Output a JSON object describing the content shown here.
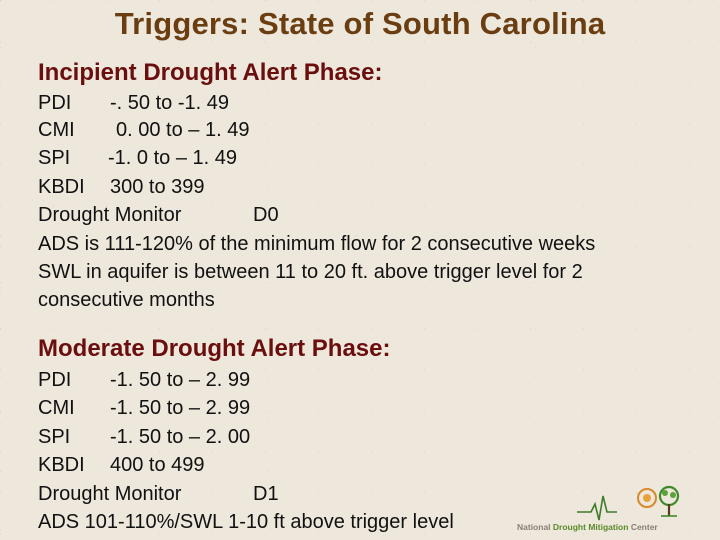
{
  "title": "Triggers: State of South Carolina",
  "incipient": {
    "heading": "Incipient Drought Alert Phase:",
    "rows": [
      {
        "label": "PDI",
        "value": "-. 50 to -1. 49"
      },
      {
        "label": "CMI",
        "value": "0. 00 to – 1. 49"
      },
      {
        "label": "SPI",
        "value": "-1. 0 to – 1. 49"
      },
      {
        "label": "KBDI",
        "value": "300 to 399"
      },
      {
        "label": "Drought Monitor",
        "value": "D0"
      }
    ],
    "ads": "ADS is 111-120% of the minimum flow for 2 consecutive weeks",
    "swl_line1": "SWL in aquifer is between 11 to 20 ft. above trigger level for 2",
    "swl_line2": "consecutive months"
  },
  "moderate": {
    "heading": "Moderate Drought Alert Phase:",
    "rows": [
      {
        "label": "PDI",
        "value": "-1. 50 to – 2. 99"
      },
      {
        "label": "CMI",
        "value": "-1. 50 to – 2. 99"
      },
      {
        "label": "SPI",
        "value": "-1. 50 to – 2. 00"
      },
      {
        "label": "KBDI",
        "value": "400 to 499"
      },
      {
        "label": "Drought Monitor",
        "value": "D1"
      }
    ],
    "ads_swl": "ADS 101-110%/SWL 1-10 ft above trigger level"
  },
  "logo": {
    "part1": "National ",
    "part2": "Drought Mitigation",
    "part3": " Center"
  },
  "colors": {
    "title": "#6b3e12",
    "heading": "#6a0e0e",
    "body_text": "#111111",
    "background": "#ede7dc"
  }
}
